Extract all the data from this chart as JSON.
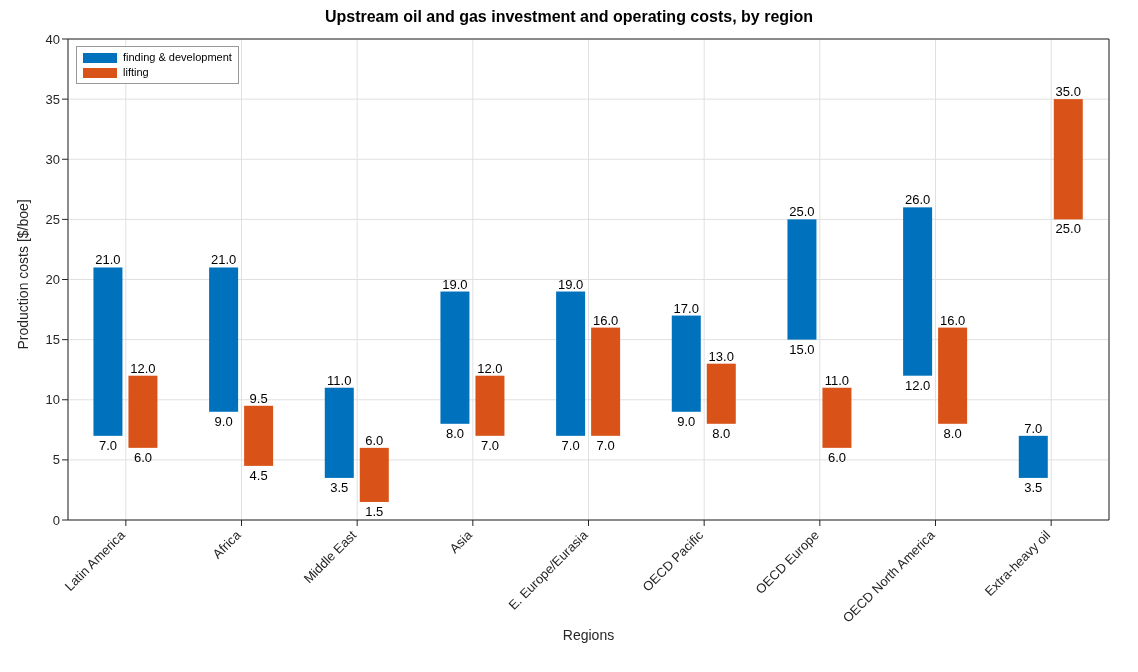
{
  "chart_data": {
    "type": "bar",
    "title": "Upstream oil and gas investment and operating costs, by region",
    "xlabel": "Regions",
    "ylabel": "Production costs [$/boe]",
    "categories": [
      "Latin America",
      "Africa",
      "Middle East",
      "Asia",
      "E. Europe/Eurasia",
      "OECD Pacific",
      "OECD Europe",
      "OECD North America",
      "Extra-heavy oil"
    ],
    "series": [
      {
        "name": "finding & development",
        "color": "#0072bd",
        "base": [
          7,
          9,
          3.5,
          8,
          7,
          9,
          15,
          12,
          3.5
        ],
        "values": [
          14,
          12,
          7.5,
          11,
          12,
          8,
          10,
          14,
          3.5
        ]
      },
      {
        "name": "lifting",
        "color": "#d95319",
        "base": [
          6,
          4.5,
          1.5,
          7,
          7,
          8,
          6,
          8,
          25
        ],
        "values": [
          6,
          5,
          4.5,
          5,
          9,
          5,
          5,
          8,
          10
        ]
      }
    ],
    "ylim": [
      0,
      40
    ],
    "yticks": [
      0,
      5,
      10,
      15,
      20,
      25,
      30,
      35,
      40
    ],
    "grid": true,
    "legend": "top left",
    "annotations": [
      {
        "text": "21.0",
        "x": "Latin America",
        "y": 21
      },
      {
        "text": "7.0",
        "x": "Latin America",
        "y": 7
      },
      {
        "text": "12.0",
        "x": "Latin America",
        "y": 12
      },
      {
        "text": "6.0",
        "x": "Latin America",
        "y": 6
      },
      {
        "text": "21.0",
        "x": "Africa",
        "y": 21
      },
      {
        "text": "9.0",
        "x": "Africa",
        "y": 9
      },
      {
        "text": "9.5",
        "x": "Africa",
        "y": 9.5
      },
      {
        "text": "4.5",
        "x": "Africa",
        "y": 4.5
      },
      {
        "text": "11.0",
        "x": "Middle East",
        "y": 11
      },
      {
        "text": "3.5",
        "x": "Middle East",
        "y": 3.5
      },
      {
        "text": "6.0",
        "x": "Middle East",
        "y": 6
      },
      {
        "text": "1.5",
        "x": "Middle East",
        "y": 1.5
      },
      {
        "text": "19.0",
        "x": "Asia",
        "y": 19
      },
      {
        "text": "8.0",
        "x": "Asia",
        "y": 8
      },
      {
        "text": "12.0",
        "x": "Asia",
        "y": 12
      },
      {
        "text": "7.0",
        "x": "Asia",
        "y": 7
      },
      {
        "text": "19.0",
        "x": "E. Europe/Eurasia",
        "y": 19
      },
      {
        "text": "7.0",
        "x": "E. Europe/Eurasia",
        "y": 7
      },
      {
        "text": "16.0",
        "x": "E. Europe/Eurasia",
        "y": 16
      },
      {
        "text": "7.0",
        "x": "E. Europe/Eurasia",
        "y": 7
      },
      {
        "text": "17.0",
        "x": "OECD Pacific",
        "y": 17
      },
      {
        "text": "9.0",
        "x": "OECD Pacific",
        "y": 9
      },
      {
        "text": "13.0",
        "x": "OECD Pacific",
        "y": 13
      },
      {
        "text": "8.0",
        "x": "OECD Pacific",
        "y": 8
      },
      {
        "text": "25.0",
        "x": "OECD Europe",
        "y": 25
      },
      {
        "text": "15.0",
        "x": "OECD Europe",
        "y": 15
      },
      {
        "text": "11.0",
        "x": "OECD Europe",
        "y": 11
      },
      {
        "text": "6.0",
        "x": "OECD Europe",
        "y": 6
      },
      {
        "text": "26.0",
        "x": "OECD North America",
        "y": 26
      },
      {
        "text": "12.0",
        "x": "OECD North America",
        "y": 12
      },
      {
        "text": "16.0",
        "x": "OECD North America",
        "y": 16
      },
      {
        "text": "8.0",
        "x": "OECD North America",
        "y": 8
      },
      {
        "text": "7.0",
        "x": "Extra-heavy oil",
        "y": 7
      },
      {
        "text": "3.5",
        "x": "Extra-heavy oil",
        "y": 3.5
      },
      {
        "text": "35.0",
        "x": "Extra-heavy oil",
        "y": 35
      },
      {
        "text": "25.0",
        "x": "Extra-heavy oil",
        "y": 25
      }
    ]
  }
}
